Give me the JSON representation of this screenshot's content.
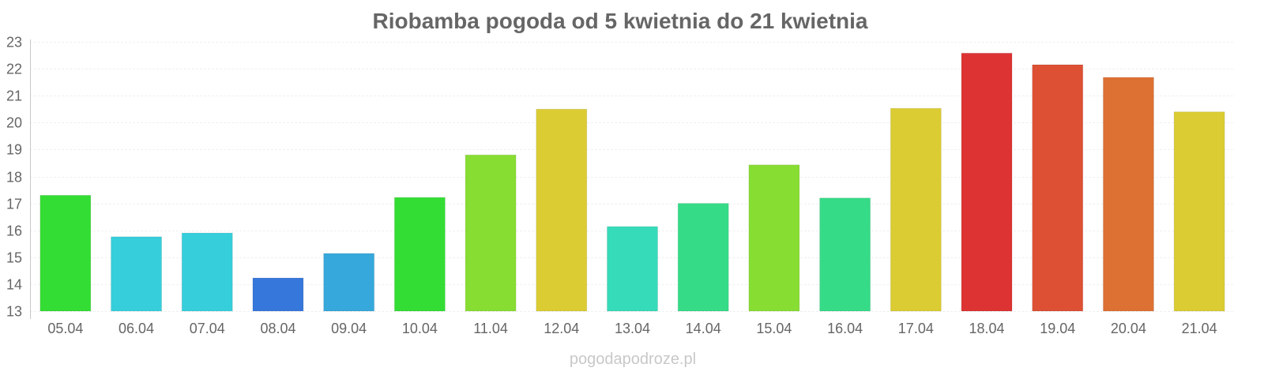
{
  "chart_data": {
    "type": "bar",
    "title": "Riobamba pogoda od 5 kwietnia do 21 kwietnia",
    "xlabel": "",
    "ylabel": "",
    "ylim": [
      13,
      23
    ],
    "yticks": [
      13,
      14,
      15,
      16,
      17,
      18,
      19,
      20,
      21,
      22,
      23
    ],
    "grid": true,
    "categories": [
      "05.04",
      "06.04",
      "07.04",
      "08.04",
      "09.04",
      "10.04",
      "11.04",
      "12.04",
      "13.04",
      "14.04",
      "15.04",
      "16.04",
      "17.04",
      "18.04",
      "19.04",
      "20.04",
      "21.04"
    ],
    "values": [
      17.3,
      15.76,
      15.9,
      14.23,
      15.14,
      17.22,
      18.8,
      20.5,
      16.14,
      17.0,
      18.43,
      17.2,
      20.53,
      22.58,
      22.15,
      21.68,
      20.4
    ],
    "colors": [
      "#33dd33",
      "#36cedb",
      "#36cedb",
      "#3677db",
      "#36a8db",
      "#33dd33",
      "#88dd33",
      "#dbcc33",
      "#36dbba",
      "#36db88",
      "#88dd33",
      "#36db88",
      "#dbcc33",
      "#dd3333",
      "#dd5033",
      "#dd7033",
      "#dbcc33"
    ]
  },
  "watermark": "pogodapodroze.pl"
}
